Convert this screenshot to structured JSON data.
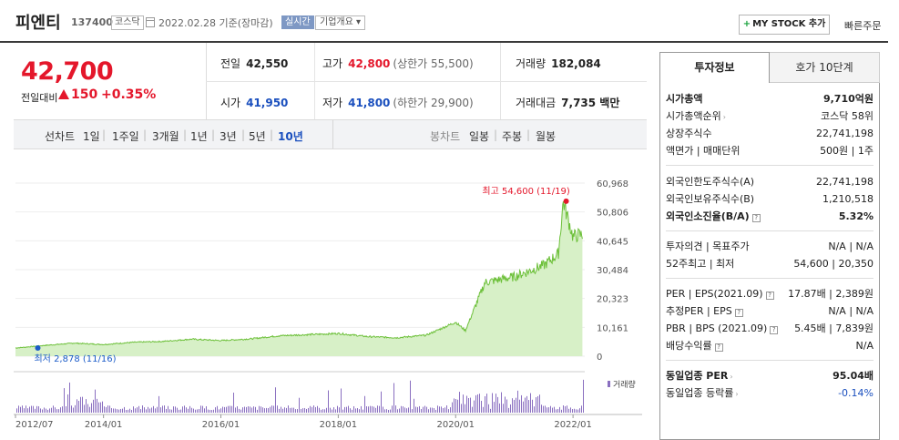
{
  "header": {
    "name": "피엔티",
    "code": "137400",
    "market": "코스닥",
    "date": "2022.02.28 기준(장마감)",
    "realtime": "실시간",
    "corp_info": "기업개요 ▾",
    "mystock_label": "MY STOCK 추가",
    "quick_order": "빠른주문"
  },
  "price": {
    "current": "42,700",
    "prev_label": "전일대비",
    "change": "150",
    "rate": "+0.35%"
  },
  "info": {
    "prev_close_label": "전일",
    "prev_close": "42,550",
    "high_label": "고가",
    "high": "42,800",
    "upper_limit": "(상한가 55,500)",
    "volume_label": "거래량",
    "volume": "182,084",
    "open_label": "시가",
    "open": "41,950",
    "low_label": "저가",
    "low": "41,800",
    "lower_limit": "(하한가 29,900)",
    "amount_label": "거래대금",
    "amount": "7,735 백만"
  },
  "period": {
    "line_label": "선차트",
    "line_items": [
      "1일",
      "1주일",
      "3개월",
      "1년",
      "3년",
      "5년",
      "10년"
    ],
    "selected": "10년",
    "candle_label": "봉차트",
    "candle_items": [
      "일봉",
      "주봉",
      "월봉"
    ]
  },
  "chart_data": {
    "type": "area",
    "x": [
      "2012/07",
      "2013/01",
      "2013/07",
      "2014/01",
      "2014/07",
      "2015/01",
      "2015/07",
      "2016/01",
      "2016/07",
      "2017/01",
      "2017/07",
      "2018/01",
      "2018/07",
      "2019/01",
      "2019/07",
      "2020/01",
      "2020/03",
      "2020/07",
      "2021/01",
      "2021/07",
      "2021/10",
      "2021/11",
      "2022/01",
      "2022/02"
    ],
    "y": [
      2878,
      3800,
      4600,
      4100,
      4900,
      5200,
      6000,
      5500,
      6100,
      7200,
      7600,
      8000,
      6900,
      6500,
      7400,
      12000,
      9000,
      26000,
      28000,
      32000,
      36000,
      54600,
      42000,
      42700
    ],
    "y_ticks": [
      "60,968",
      "50,806",
      "40,645",
      "30,484",
      "20,323",
      "10,161",
      "0"
    ],
    "ylim": [
      0,
      60968
    ],
    "x_ticks": [
      "2012/07",
      "2014/01",
      "2016/01",
      "2018/01",
      "2020/01",
      "2022/01"
    ],
    "max_label": "최고 54,600 (11/19)",
    "min_label": "최저 2,878 (11/16)",
    "volume_label": "거래량",
    "line_color": "#6dc03a",
    "fill_color": "#d7f0c7"
  },
  "panel": {
    "tab_active": "투자정보",
    "tab_other": "호가 10단계",
    "rows1": [
      {
        "k": "시가총액",
        "v": "9,710억원"
      },
      {
        "k": "시가총액순위",
        "v": "코스닥 58위"
      },
      {
        "k": "상장주식수",
        "v": "22,741,198"
      },
      {
        "k": "액면가 | 매매단위",
        "v": "500원 | 1주"
      }
    ],
    "rows2": [
      {
        "k": "외국인한도주식수(A)",
        "v": "22,741,198"
      },
      {
        "k": "외국인보유주식수(B)",
        "v": "1,210,518"
      },
      {
        "k": "외국인소진율(B/A)",
        "v": "5.32%"
      }
    ],
    "rows3": [
      {
        "k": "투자의견 | 목표주가",
        "v": "N/A | N/A"
      },
      {
        "k": "52주최고 | 최저",
        "v": "54,600 | 20,350"
      }
    ],
    "rows4": [
      {
        "k": "PER | EPS(2021.09)",
        "v": "17.87배 | 2,389원"
      },
      {
        "k": "추정PER | EPS",
        "v": "N/A | N/A"
      },
      {
        "k": "PBR | BPS (2021.09)",
        "v": "5.45배 | 7,839원"
      },
      {
        "k": "배당수익률",
        "v": "N/A"
      }
    ],
    "rows5": [
      {
        "k": "동일업종 PER",
        "v": "95.04배"
      },
      {
        "k": "동일업종 등락률",
        "v": "-0.14%"
      }
    ]
  }
}
